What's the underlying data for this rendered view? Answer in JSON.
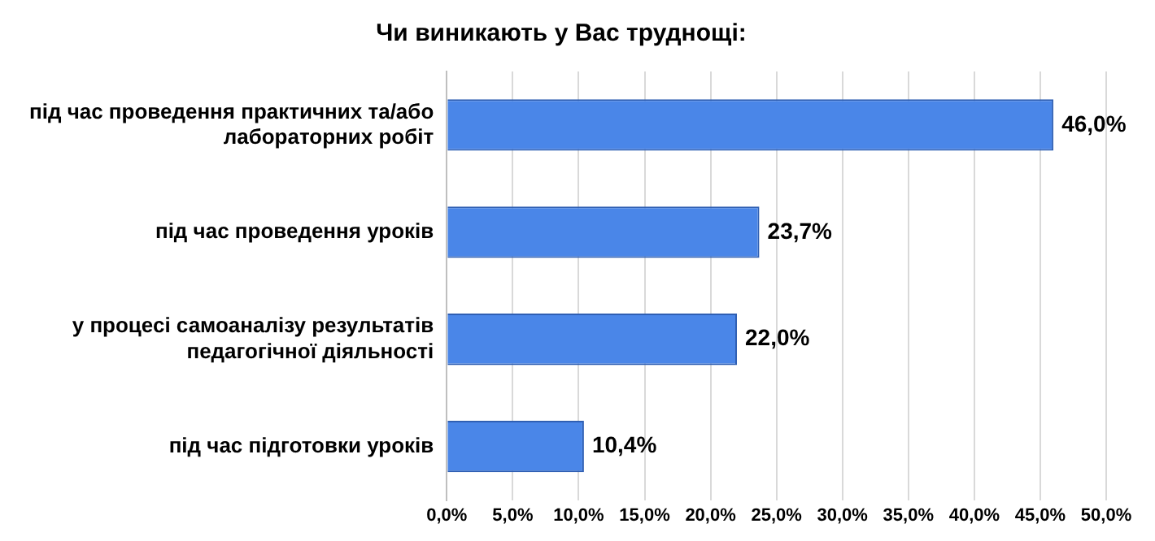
{
  "chart_data": {
    "type": "bar",
    "orientation": "horizontal",
    "title": "Чи виникають у Вас труднощі:",
    "categories": [
      "під час проведення практичних та/або лабораторних робіт",
      "під час проведення уроків",
      "у процесі самоаналізу результатів педагогічної діяльності",
      "під час підготовки уроків"
    ],
    "values": [
      46.0,
      23.7,
      22.0,
      10.4
    ],
    "value_labels": [
      "46,0%",
      "23,7%",
      "22,0%",
      "10,4%"
    ],
    "color": "#4a86e8",
    "xlim": [
      0,
      50
    ],
    "xticks": [
      {
        "value": 0,
        "label": "0,0%"
      },
      {
        "value": 5,
        "label": "5,0%"
      },
      {
        "value": 10,
        "label": "10,0%"
      },
      {
        "value": 15,
        "label": "15,0%"
      },
      {
        "value": 20,
        "label": "20,0%"
      },
      {
        "value": 25,
        "label": "25,0%"
      },
      {
        "value": 30,
        "label": "30,0%"
      },
      {
        "value": 35,
        "label": "35,0%"
      },
      {
        "value": 40,
        "label": "40,0%"
      },
      {
        "value": 45,
        "label": "45,0%"
      },
      {
        "value": 50,
        "label": "50,0%"
      }
    ],
    "grid": "x",
    "legend": false
  }
}
